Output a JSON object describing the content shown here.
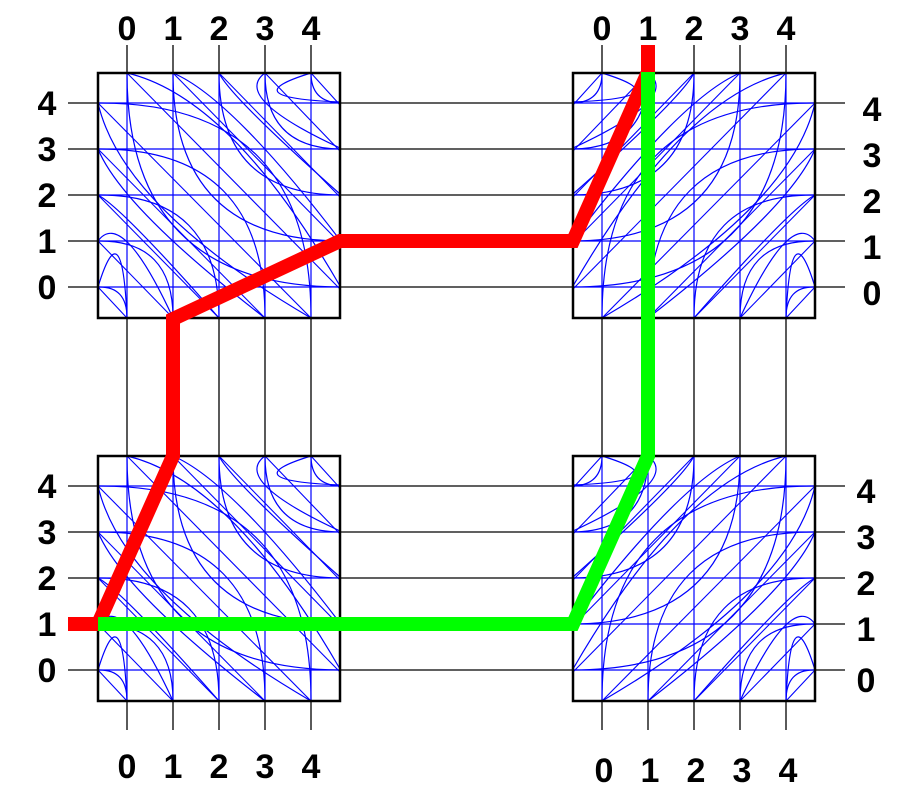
{
  "diagram": {
    "switches": [
      {
        "id": "top-left",
        "top_labels": [
          "0",
          "1",
          "2",
          "3",
          "4"
        ],
        "left_labels": [
          "4",
          "3",
          "2",
          "1",
          "0"
        ]
      },
      {
        "id": "top-right",
        "top_labels": [
          "0",
          "1",
          "2",
          "3",
          "4"
        ],
        "right_labels": [
          "4",
          "3",
          "2",
          "1",
          "0"
        ]
      },
      {
        "id": "bottom-left",
        "left_labels": [
          "4",
          "3",
          "2",
          "1",
          "0"
        ],
        "bottom_labels": [
          "0",
          "1",
          "2",
          "3",
          "4"
        ]
      },
      {
        "id": "bottom-right",
        "right_labels": [
          "4",
          "3",
          "2",
          "1",
          "0"
        ],
        "bottom_labels": [
          "0",
          "1",
          "2",
          "3",
          "4"
        ]
      }
    ],
    "routes": [
      {
        "name": "red-route",
        "color": "#ff0000"
      },
      {
        "name": "green-route",
        "color": "#00ff00"
      }
    ],
    "colors": {
      "switch_wires": "#0000ff",
      "channel_tracks": "#000000",
      "box_border": "#000000"
    }
  }
}
